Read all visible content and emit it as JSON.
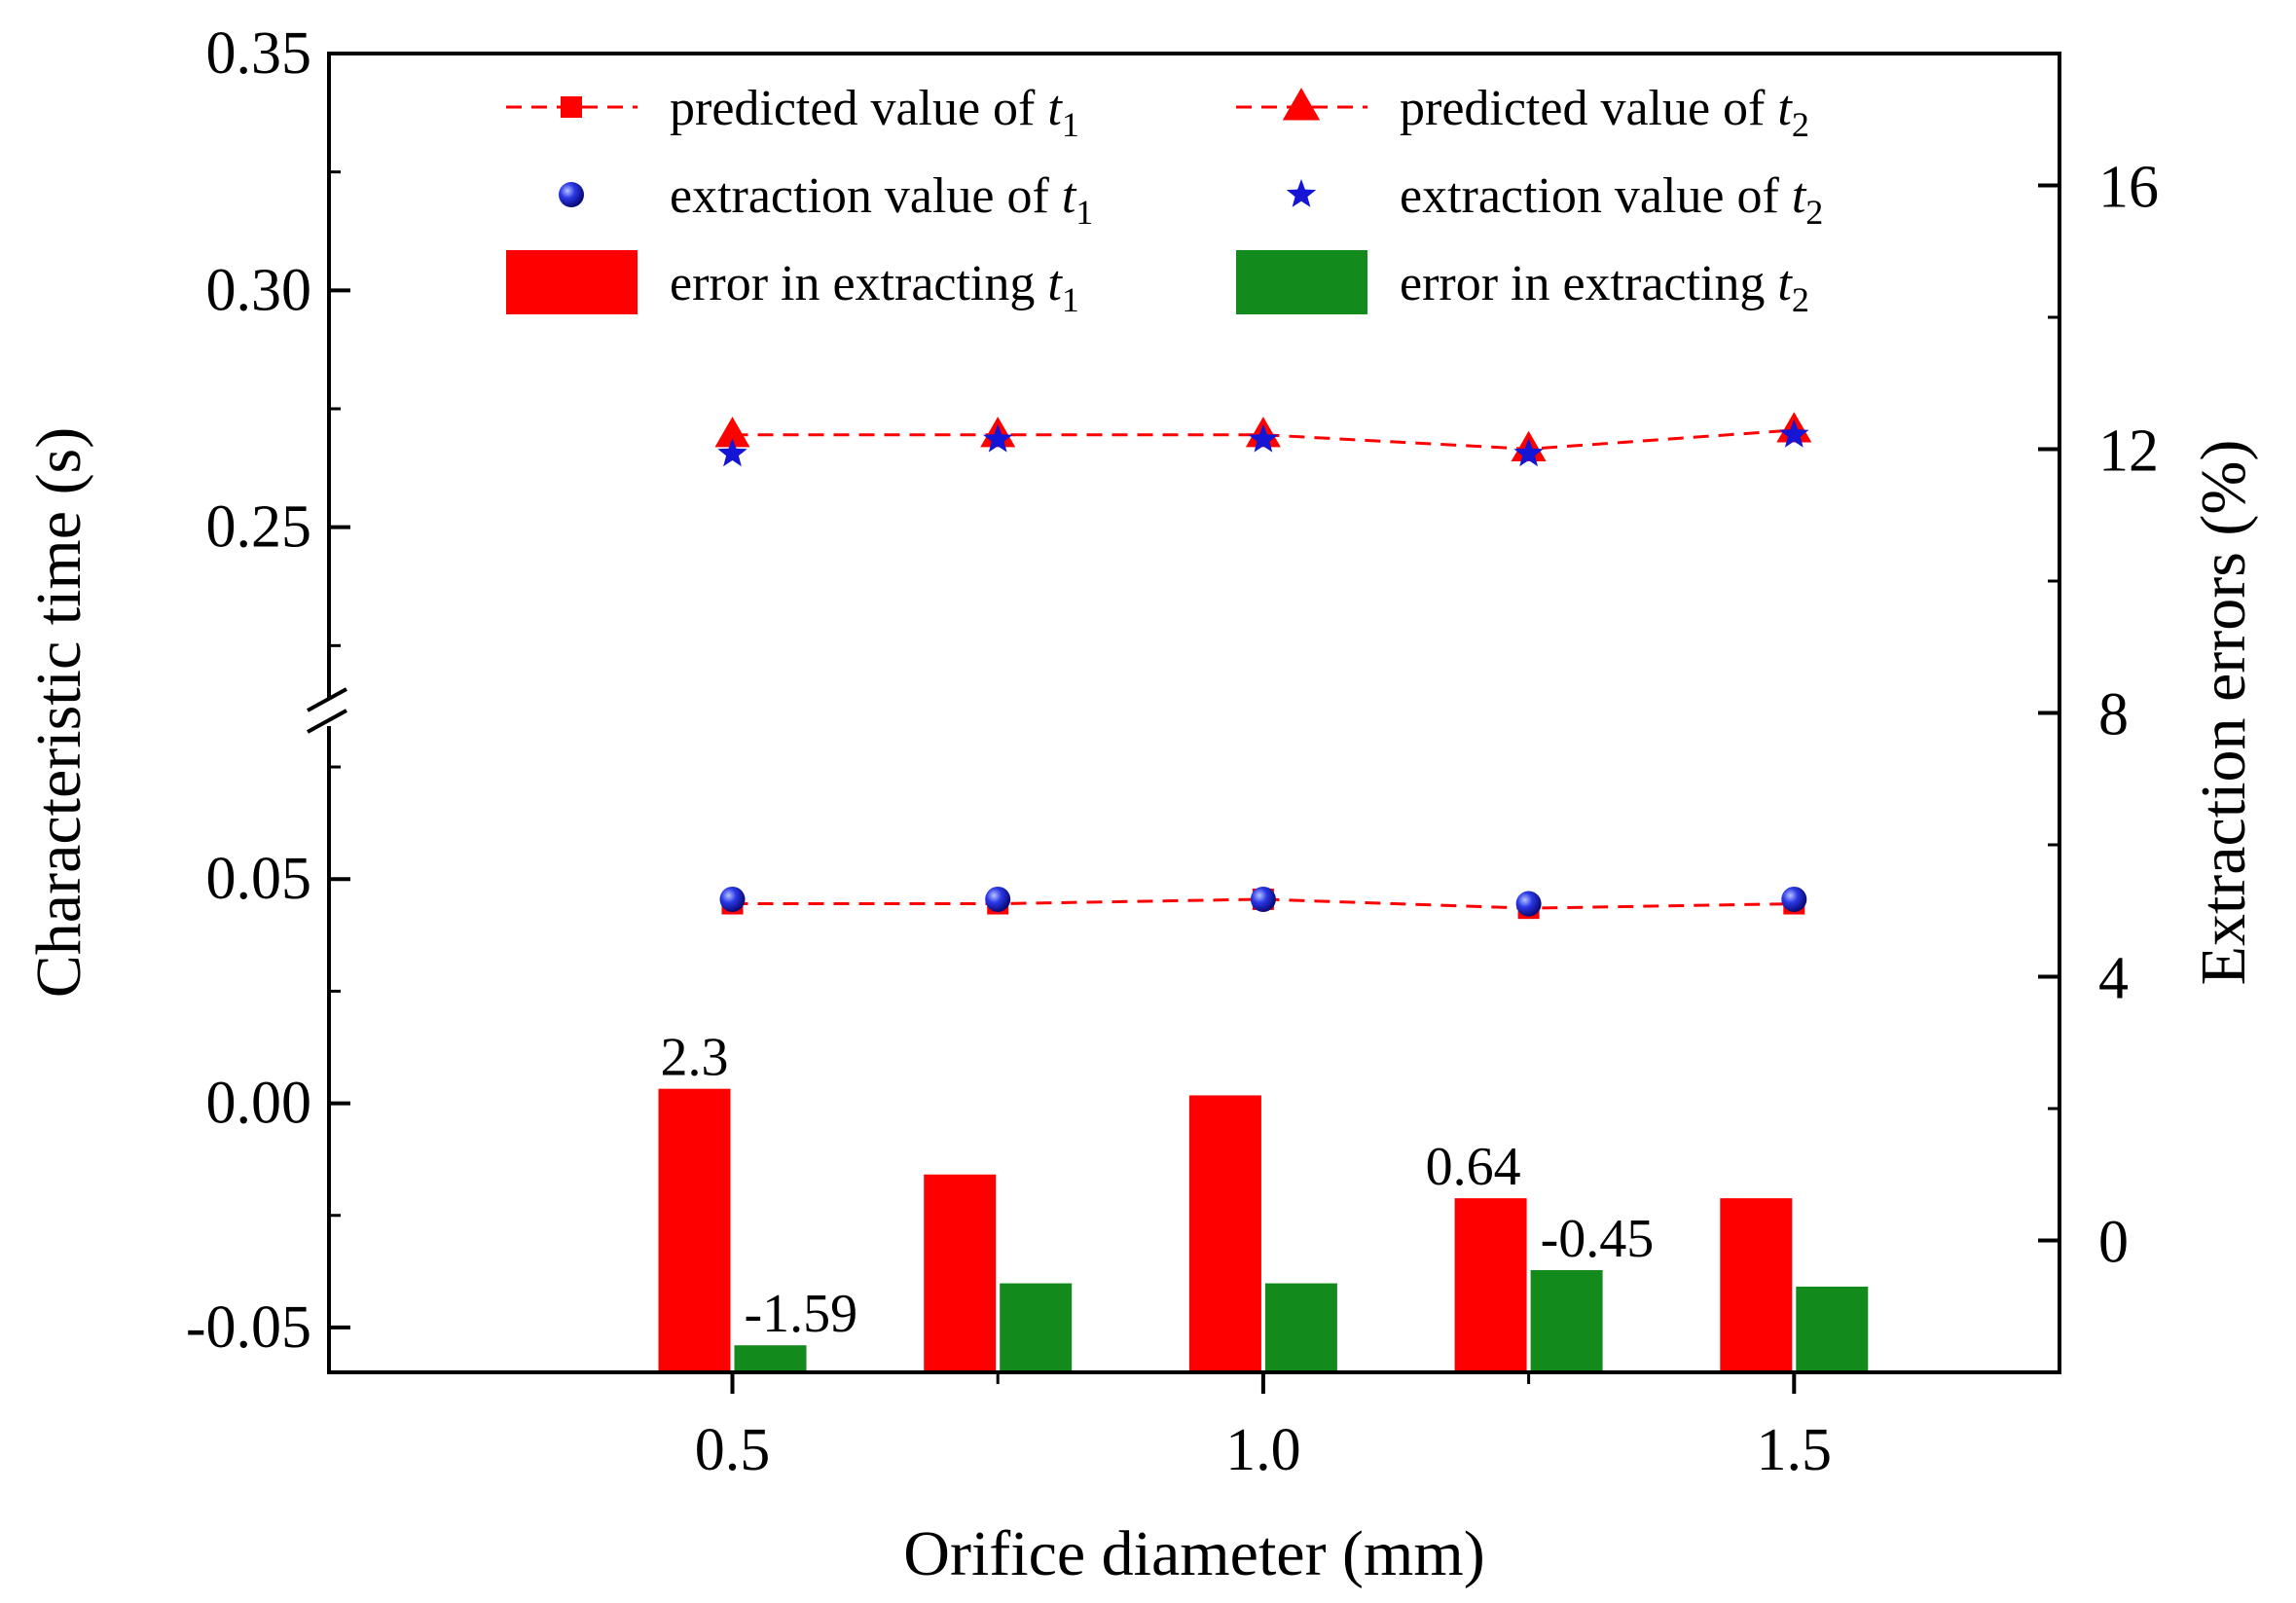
{
  "chart_data": {
    "type": "bar+line",
    "title": "",
    "xlabel": "Orifice diameter (mm)",
    "ylabel_left": "Characteristic time (s)",
    "ylabel_right": "Extraction errors (%)",
    "x_ticks": [
      "0.5",
      "1.0",
      "1.5"
    ],
    "x_tick_values": [
      0.5,
      1.0,
      1.5
    ],
    "xlim": [
      0.12,
      1.75
    ],
    "y_left_lower_range": [
      -0.06,
      0.08
    ],
    "y_left_upper_range": [
      0.215,
      0.35
    ],
    "y_left_ticks": [
      "-0.05",
      "0.00",
      "0.05",
      "0.25",
      "0.30",
      "0.35"
    ],
    "y_left_tick_values": [
      -0.05,
      0.0,
      0.05,
      0.25,
      0.3,
      0.35
    ],
    "y_right_range": [
      -2.0,
      18.0
    ],
    "y_right_ticks": [
      "0",
      "4",
      "8",
      "12",
      "16"
    ],
    "y_right_tick_values": [
      0,
      4,
      8,
      12,
      16
    ],
    "x": [
      0.5,
      0.75,
      1.0,
      1.25,
      1.5
    ],
    "series": [
      {
        "name": "predicted value of t1",
        "kind": "line-square",
        "axis": "left",
        "values": [
          0.0445,
          0.0445,
          0.0455,
          0.0435,
          0.0445
        ]
      },
      {
        "name": "predicted value of t2",
        "kind": "line-triangle",
        "axis": "left",
        "values": [
          0.2695,
          0.2695,
          0.2695,
          0.2665,
          0.2705
        ]
      },
      {
        "name": "extraction value of t1",
        "kind": "scatter-circle",
        "axis": "left",
        "values": [
          0.0455,
          0.0455,
          0.0455,
          0.0445,
          0.0455
        ]
      },
      {
        "name": "extraction value of t2",
        "kind": "scatter-star",
        "axis": "left",
        "values": [
          0.2655,
          0.2685,
          0.2685,
          0.2655,
          0.2695
        ]
      },
      {
        "name": "error in extracting t1",
        "kind": "bar",
        "axis": "right",
        "values": [
          2.3,
          1.0,
          2.2,
          0.64,
          0.64
        ]
      },
      {
        "name": "error in extracting t2",
        "kind": "bar",
        "axis": "right",
        "values": [
          -1.59,
          -0.65,
          -0.65,
          -0.45,
          -0.7
        ]
      }
    ],
    "data_labels": [
      {
        "series": 4,
        "index": 0,
        "text": "2.3"
      },
      {
        "series": 5,
        "index": 0,
        "text": "-1.59"
      },
      {
        "series": 4,
        "index": 3,
        "text": "0.64"
      },
      {
        "series": 5,
        "index": 3,
        "text": "-0.45"
      }
    ],
    "legend": {
      "placement": "top",
      "items": [
        {
          "prefix": "predicted value of ",
          "var": "t",
          "sub": "1",
          "symbol": "line-square",
          "color": "#ff0000"
        },
        {
          "prefix": "predicted value of ",
          "var": "t",
          "sub": "2",
          "symbol": "line-triangle",
          "color": "#ff0000"
        },
        {
          "prefix": "extraction value of ",
          "var": "t",
          "sub": "1",
          "symbol": "circle",
          "color": "#1515d6"
        },
        {
          "prefix": "extraction value of ",
          "var": "t",
          "sub": "2",
          "symbol": "star",
          "color": "#1515d6"
        },
        {
          "prefix": "error in extracting ",
          "var": "t",
          "sub": "1",
          "symbol": "rect",
          "color": "#ff0000"
        },
        {
          "prefix": "error in extracting ",
          "var": "t",
          "sub": "2",
          "symbol": "rect",
          "color": "#138a1c"
        }
      ]
    },
    "colors": {
      "predicted": "#ff0000",
      "extraction": "#1515d6",
      "bar_t1": "#ff0000",
      "bar_t2": "#138a1c"
    }
  }
}
